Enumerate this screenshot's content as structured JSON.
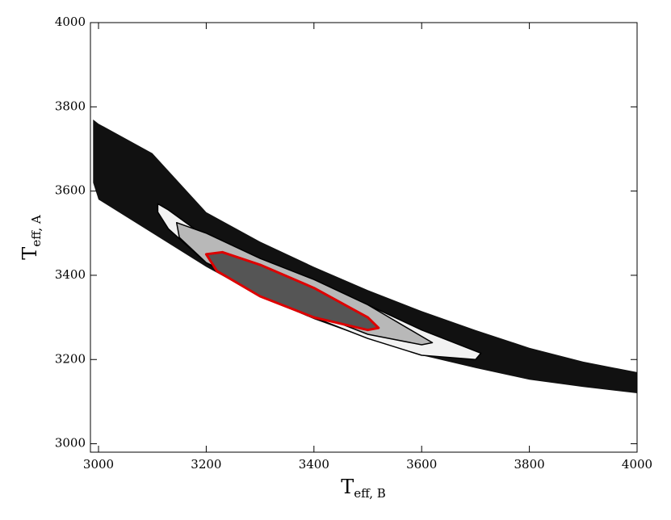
{
  "chart_data": {
    "type": "contour",
    "xlabel": {
      "text": "T",
      "sub": "eff, B"
    },
    "ylabel": {
      "text": "T",
      "sub": "eff, A"
    },
    "xlim": [
      2985,
      4000
    ],
    "xticks": [
      3000,
      3200,
      3400,
      3600,
      3800,
      4000
    ],
    "ylim": [
      2980,
      4000
    ],
    "yticks": [
      3000,
      3200,
      3400,
      3600,
      3800,
      4000
    ],
    "regions": [
      {
        "fill": "#111111",
        "stroke": "none",
        "x": [
          2990,
          3000,
          3100,
          3200,
          3300,
          3400,
          3500,
          3600,
          3700,
          3800,
          3900,
          4000,
          4000,
          3900,
          3800,
          3700,
          3600,
          3500,
          3400,
          3300,
          3200,
          3100,
          3000,
          2990
        ],
        "y": [
          3770,
          3760,
          3690,
          3550,
          3480,
          3420,
          3365,
          3315,
          3270,
          3228,
          3195,
          3170,
          3120,
          3135,
          3152,
          3180,
          3210,
          3250,
          3296,
          3350,
          3420,
          3500,
          3580,
          3620
        ]
      },
      {
        "fill": "#f2f2f2",
        "stroke": "#000000",
        "x": [
          3110,
          3130,
          3200,
          3300,
          3400,
          3500,
          3600,
          3710,
          3700,
          3600,
          3500,
          3400,
          3300,
          3200,
          3130,
          3110
        ],
        "y": [
          3570,
          3555,
          3490,
          3430,
          3380,
          3330,
          3270,
          3215,
          3200,
          3210,
          3250,
          3300,
          3360,
          3430,
          3510,
          3550
        ]
      },
      {
        "fill": "#b8b8b8",
        "stroke": "#000000",
        "x": [
          3145,
          3200,
          3300,
          3400,
          3500,
          3620,
          3600,
          3500,
          3400,
          3300,
          3200,
          3150
        ],
        "y": [
          3525,
          3500,
          3440,
          3390,
          3330,
          3240,
          3235,
          3260,
          3310,
          3370,
          3430,
          3490
        ]
      },
      {
        "fill": "#555555",
        "stroke": "#dd0000",
        "x": [
          3200,
          3230,
          3300,
          3400,
          3500,
          3520,
          3500,
          3400,
          3300,
          3220,
          3205
        ],
        "y": [
          3450,
          3455,
          3425,
          3370,
          3300,
          3275,
          3270,
          3300,
          3350,
          3410,
          3440
        ]
      }
    ]
  }
}
